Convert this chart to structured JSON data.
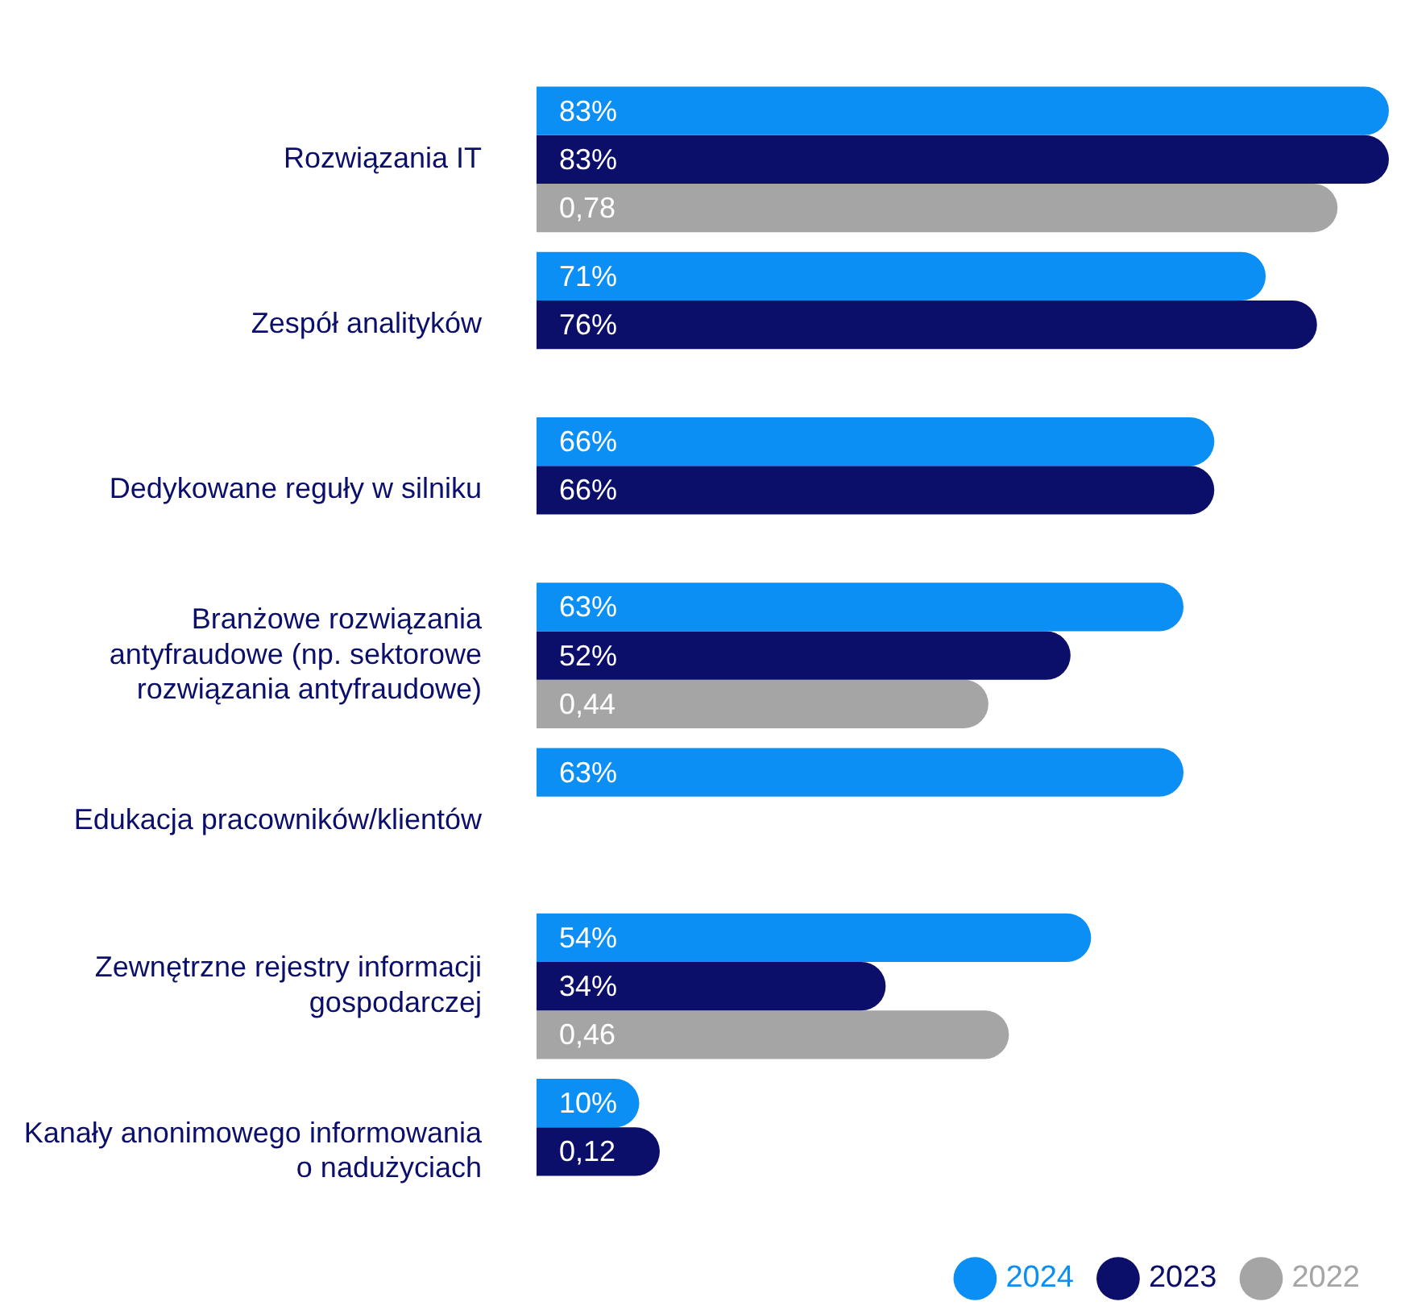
{
  "chart_data": {
    "type": "bar",
    "orientation": "horizontal",
    "categories": [
      "Rozwiązania IT",
      "Zespół analityków",
      "Dedykowane reguły w silniku",
      "Branżowe rozwiązania antyfraudowe (np. sektorowe rozwiązania antyfraudowe)",
      "Edukacja pracowników/klientów",
      "Zewnętrzne rejestry informacji gospodarczej",
      "Kanały anonimowego informowania o nadużyciach"
    ],
    "series": [
      {
        "name": "2024",
        "color": "#0b8ff4",
        "values": [
          0.83,
          0.71,
          0.66,
          0.63,
          0.63,
          0.54,
          0.1
        ],
        "value_labels": [
          "83%",
          "71%",
          "66%",
          "63%",
          "63%",
          "54%",
          "10%"
        ]
      },
      {
        "name": "2023",
        "color": "#0b0f6a",
        "values": [
          0.83,
          0.76,
          0.66,
          0.52,
          null,
          0.34,
          0.12
        ],
        "value_labels": [
          "83%",
          "76%",
          "66%",
          "52%",
          null,
          "34%",
          "0,12"
        ]
      },
      {
        "name": "2022",
        "color": "#a5a5a5",
        "values": [
          0.78,
          null,
          null,
          0.44,
          null,
          0.46,
          null
        ],
        "value_labels": [
          "0,78",
          null,
          null,
          "0,44",
          null,
          "0,46",
          null
        ]
      }
    ],
    "legend": "bottom right",
    "grid": false,
    "tick_labels": "y"
  }
}
